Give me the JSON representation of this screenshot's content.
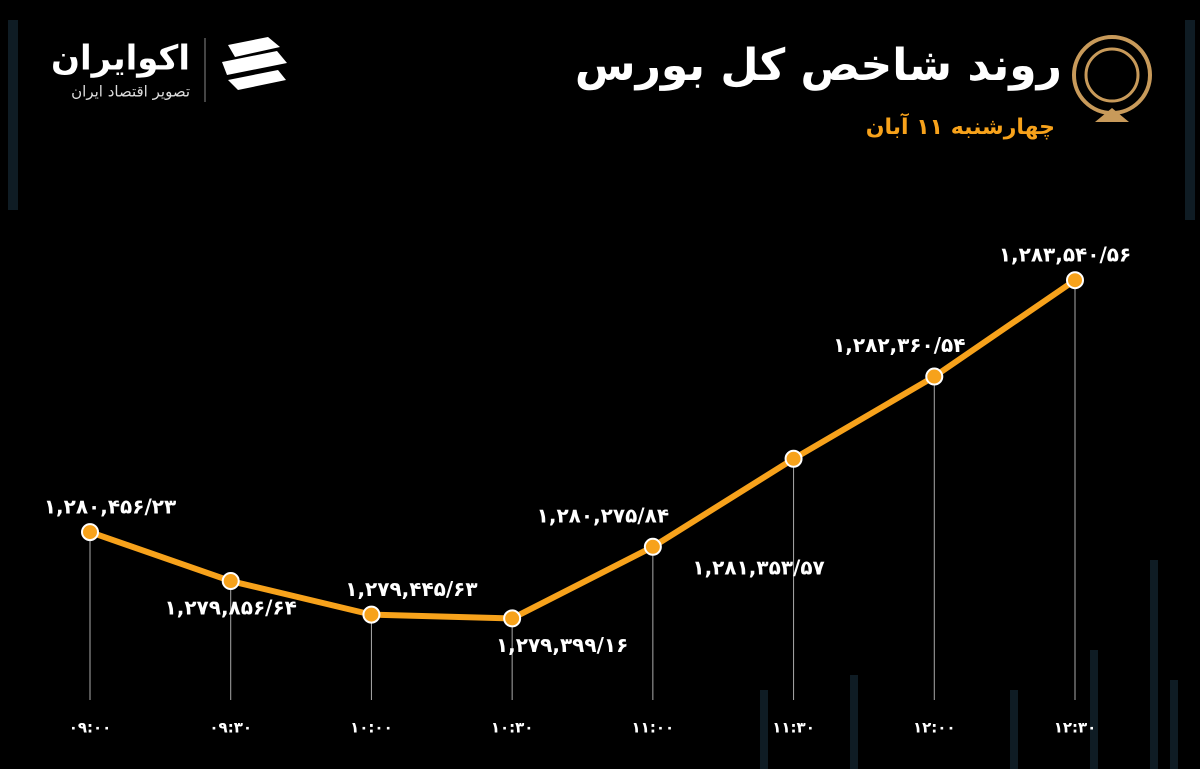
{
  "brand": {
    "name": "اکوایران",
    "tagline": "تصویر اقتصاد ایران"
  },
  "chart_data": {
    "type": "line",
    "title": "روند شاخص کل بورس",
    "subtitle": "چهارشنبه ۱۱ آبان",
    "categories": [
      "۰۹:۰۰",
      "۰۹:۳۰",
      "۱۰:۰۰",
      "۱۰:۳۰",
      "۱۱:۰۰",
      "۱۱:۳۰",
      "۱۲:۰۰",
      "۱۲:۳۰"
    ],
    "values": [
      1280456.23,
      1279856.64,
      1279445.63,
      1279399.16,
      1280275.84,
      1281353.57,
      1282360.54,
      1283540.56
    ],
    "value_labels": [
      "۱,۲۸۰,۴۵۶/۲۳",
      "۱,۲۷۹,۸۵۶/۶۴",
      "۱,۲۷۹,۴۴۵/۶۳",
      "۱,۲۷۹,۳۹۹/۱۶",
      "۱,۲۸۰,۲۷۵/۸۴",
      "۱,۲۸۱,۳۵۳/۵۷",
      "۱,۲۸۲,۳۶۰/۵۴",
      "۱,۲۸۳,۵۴۰/۵۶"
    ],
    "color": "#f7a21b",
    "ylim": [
      1278400,
      1283800
    ]
  }
}
